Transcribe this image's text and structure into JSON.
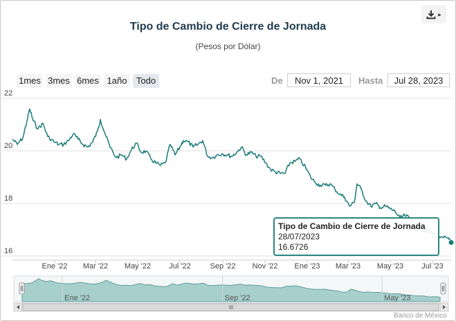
{
  "header": {
    "title": "Tipo de Cambio de Cierre de Jornada",
    "subtitle": "(Pesos por Dólar)",
    "export_icon": "download-icon"
  },
  "range_selector": {
    "buttons": [
      {
        "label": "1mes",
        "selected": false
      },
      {
        "label": "3mes",
        "selected": false
      },
      {
        "label": "6mes",
        "selected": false
      },
      {
        "label": "1año",
        "selected": false
      },
      {
        "label": "Todo",
        "selected": true
      }
    ],
    "from_label": "De",
    "from_value": "Nov 1, 2021",
    "to_label": "Hasta",
    "to_value": "Jul 28, 2023"
  },
  "tooltip": {
    "title": "Tipo de Cambio de Cierre de Jornada",
    "date": "28/07/2023",
    "value": "16.6726"
  },
  "navigator": {
    "labels": [
      "Ene '22",
      "Sep '22",
      "May '23"
    ]
  },
  "credits": "Banco de México",
  "colors": {
    "line": "#1a7a76",
    "navigator_fill": "#a7cfcc",
    "navigator_line": "#5e9e9b",
    "tooltip_border": "#2a8580"
  },
  "chart_data": {
    "type": "line",
    "title": "Tipo de Cambio de Cierre de Jornada",
    "subtitle": "(Pesos por Dólar)",
    "ylim": [
      16,
      22
    ],
    "yticks": [
      16,
      18,
      20,
      22
    ],
    "xlim": [
      "2021-11-01",
      "2023-07-28"
    ],
    "xticks": [
      {
        "date": "2022-01-01",
        "label": "Ene '22"
      },
      {
        "date": "2022-03-01",
        "label": "Mar '22"
      },
      {
        "date": "2022-05-01",
        "label": "May '22"
      },
      {
        "date": "2022-07-01",
        "label": "Jul '22"
      },
      {
        "date": "2022-09-01",
        "label": "Sep '22"
      },
      {
        "date": "2022-11-01",
        "label": "Nov '22"
      },
      {
        "date": "2023-01-01",
        "label": "Ene '23"
      },
      {
        "date": "2023-03-01",
        "label": "Mar '23"
      },
      {
        "date": "2023-05-01",
        "label": "May '23"
      },
      {
        "date": "2023-07-01",
        "label": "Jul '23"
      }
    ],
    "grid": true,
    "series": [
      {
        "name": "Tipo de Cambio de Cierre de Jornada",
        "points": [
          [
            "2021-11-01",
            20.6
          ],
          [
            "2021-11-08",
            20.4
          ],
          [
            "2021-11-16",
            20.65
          ],
          [
            "2021-11-22",
            21.3
          ],
          [
            "2021-11-26",
            21.75
          ],
          [
            "2021-12-01",
            21.3
          ],
          [
            "2021-12-08",
            21.0
          ],
          [
            "2021-12-15",
            21.2
          ],
          [
            "2021-12-22",
            20.7
          ],
          [
            "2021-12-31",
            20.5
          ],
          [
            "2022-01-07",
            20.4
          ],
          [
            "2022-01-14",
            20.4
          ],
          [
            "2022-01-21",
            20.55
          ],
          [
            "2022-01-28",
            20.8
          ],
          [
            "2022-02-04",
            20.6
          ],
          [
            "2022-02-11",
            20.4
          ],
          [
            "2022-02-18",
            20.3
          ],
          [
            "2022-02-25",
            20.5
          ],
          [
            "2022-03-04",
            20.9
          ],
          [
            "2022-03-08",
            21.35
          ],
          [
            "2022-03-15",
            20.8
          ],
          [
            "2022-03-22",
            20.3
          ],
          [
            "2022-03-31",
            19.9
          ],
          [
            "2022-04-08",
            20.0
          ],
          [
            "2022-04-15",
            19.85
          ],
          [
            "2022-04-22",
            20.2
          ],
          [
            "2022-04-29",
            20.45
          ],
          [
            "2022-05-06",
            20.1
          ],
          [
            "2022-05-13",
            20.15
          ],
          [
            "2022-05-20",
            19.85
          ],
          [
            "2022-05-27",
            19.7
          ],
          [
            "2022-06-03",
            19.6
          ],
          [
            "2022-06-10",
            19.7
          ],
          [
            "2022-06-17",
            20.4
          ],
          [
            "2022-06-24",
            20.0
          ],
          [
            "2022-07-01",
            20.3
          ],
          [
            "2022-07-06",
            20.55
          ],
          [
            "2022-07-13",
            20.5
          ],
          [
            "2022-07-20",
            20.3
          ],
          [
            "2022-07-27",
            20.4
          ],
          [
            "2022-08-03",
            20.55
          ],
          [
            "2022-08-10",
            19.95
          ],
          [
            "2022-08-17",
            19.9
          ],
          [
            "2022-08-24",
            20.0
          ],
          [
            "2022-08-31",
            20.05
          ],
          [
            "2022-09-07",
            20.0
          ],
          [
            "2022-09-14",
            19.95
          ],
          [
            "2022-09-21",
            20.1
          ],
          [
            "2022-09-28",
            20.3
          ],
          [
            "2022-10-05",
            20.0
          ],
          [
            "2022-10-12",
            20.1
          ],
          [
            "2022-10-19",
            19.95
          ],
          [
            "2022-10-26",
            19.95
          ],
          [
            "2022-11-02",
            19.7
          ],
          [
            "2022-11-09",
            19.45
          ],
          [
            "2022-11-16",
            19.35
          ],
          [
            "2022-11-23",
            19.3
          ],
          [
            "2022-11-30",
            19.3
          ],
          [
            "2022-12-07",
            19.7
          ],
          [
            "2022-12-14",
            19.75
          ],
          [
            "2022-12-21",
            19.85
          ],
          [
            "2022-12-30",
            19.5
          ],
          [
            "2023-01-06",
            19.15
          ],
          [
            "2023-01-13",
            18.95
          ],
          [
            "2023-01-20",
            18.85
          ],
          [
            "2023-01-27",
            18.85
          ],
          [
            "2023-02-03",
            18.9
          ],
          [
            "2023-02-10",
            18.7
          ],
          [
            "2023-02-17",
            18.5
          ],
          [
            "2023-02-24",
            18.4
          ],
          [
            "2023-03-03",
            18.05
          ],
          [
            "2023-03-10",
            18.2
          ],
          [
            "2023-03-14",
            18.9
          ],
          [
            "2023-03-20",
            18.7
          ],
          [
            "2023-03-27",
            18.25
          ],
          [
            "2023-04-03",
            18.05
          ],
          [
            "2023-04-10",
            18.15
          ],
          [
            "2023-04-17",
            18.0
          ],
          [
            "2023-04-24",
            18.05
          ],
          [
            "2023-05-01",
            17.95
          ],
          [
            "2023-05-08",
            17.85
          ],
          [
            "2023-05-15",
            17.6
          ],
          [
            "2023-05-22",
            17.7
          ],
          [
            "2023-05-29",
            17.6
          ],
          [
            "2023-06-05",
            17.35
          ],
          [
            "2023-06-12",
            17.3
          ],
          [
            "2023-06-19",
            17.1
          ],
          [
            "2023-06-26",
            17.05
          ],
          [
            "2023-07-03",
            17.05
          ],
          [
            "2023-07-10",
            16.8
          ],
          [
            "2023-07-17",
            16.85
          ],
          [
            "2023-07-24",
            16.85
          ],
          [
            "2023-07-28",
            16.6726
          ]
        ]
      }
    ]
  }
}
